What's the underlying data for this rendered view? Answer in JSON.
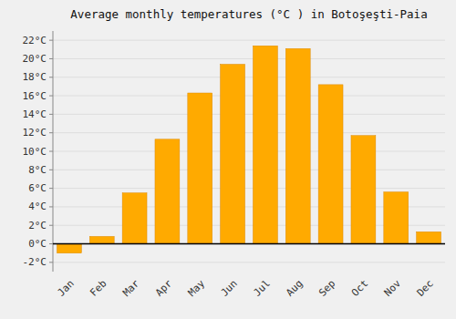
{
  "chart_data": {
    "type": "bar",
    "title": "Average monthly temperatures (°C ) in Botoşeşti-Paia",
    "categories": [
      "Jan",
      "Feb",
      "Mar",
      "Apr",
      "May",
      "Jun",
      "Jul",
      "Aug",
      "Sep",
      "Oct",
      "Nov",
      "Dec"
    ],
    "values": [
      -1.0,
      0.8,
      5.5,
      11.3,
      16.3,
      19.4,
      21.4,
      21.1,
      17.2,
      11.7,
      5.6,
      1.3
    ],
    "color": "#FFAA00",
    "ylim": [
      -3,
      23
    ],
    "yticks": [
      {
        "value": -2,
        "label": "-2°C"
      },
      {
        "value": 0,
        "label": "0°C"
      },
      {
        "value": 2,
        "label": "2°C"
      },
      {
        "value": 4,
        "label": "4°C"
      },
      {
        "value": 6,
        "label": "6°C"
      },
      {
        "value": 8,
        "label": "8°C"
      },
      {
        "value": 10,
        "label": "10°C"
      },
      {
        "value": 12,
        "label": "12°C"
      },
      {
        "value": 14,
        "label": "14°C"
      },
      {
        "value": 16,
        "label": "16°C"
      },
      {
        "value": 18,
        "label": "18°C"
      },
      {
        "value": 20,
        "label": "20°C"
      },
      {
        "value": 22,
        "label": "22°C"
      }
    ],
    "grid": true
  }
}
